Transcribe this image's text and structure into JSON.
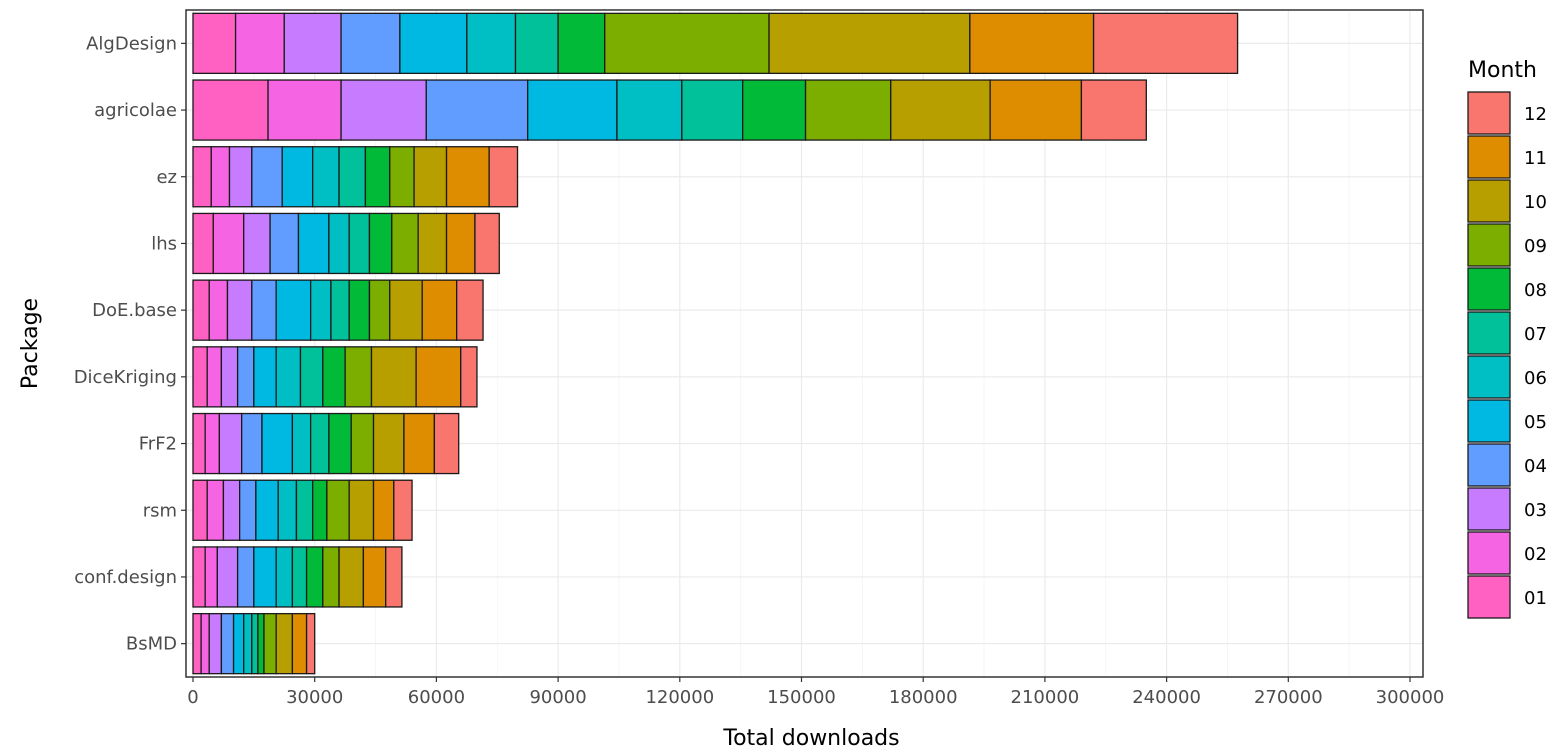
{
  "chart_data": {
    "type": "bar",
    "orientation": "horizontal",
    "stacked": true,
    "xlabel": "Total downloads",
    "ylabel": "Package",
    "xlim": [
      0,
      300000
    ],
    "x_ticks": [
      0,
      30000,
      60000,
      90000,
      120000,
      150000,
      180000,
      210000,
      240000,
      270000,
      300000
    ],
    "x_tick_labels": [
      "0",
      "30000",
      "60000",
      "90000",
      "120000",
      "150000",
      "180000",
      "210000",
      "240000",
      "270000",
      "300000"
    ],
    "grid": true,
    "legend": {
      "title": "Month",
      "position": "right",
      "entries": [
        "12",
        "11",
        "10",
        "09",
        "08",
        "07",
        "06",
        "05",
        "04",
        "03",
        "02",
        "01"
      ]
    },
    "month_colors": {
      "01": "#FF61C3",
      "02": "#F564E3",
      "03": "#C77CFF",
      "04": "#619CFF",
      "05": "#00B9E3",
      "06": "#00BFC4",
      "07": "#00C19A",
      "08": "#00BA38",
      "09": "#7CAE00",
      "10": "#B79F00",
      "11": "#DE8C00",
      "12": "#F8766D"
    },
    "month_order": [
      "01",
      "02",
      "03",
      "04",
      "05",
      "06",
      "07",
      "08",
      "09",
      "10",
      "11",
      "12"
    ],
    "categories": [
      "AlgDesign",
      "agricolae",
      "ez",
      "lhs",
      "DoE.base",
      "DiceKriging",
      "FrF2",
      "rsm",
      "conf.design",
      "BsMD"
    ],
    "series": [
      {
        "name": "01",
        "values": [
          10500,
          18500,
          4500,
          5000,
          4000,
          3500,
          3000,
          3500,
          3000,
          2000
        ]
      },
      {
        "name": "02",
        "values": [
          12000,
          18000,
          4500,
          7500,
          4500,
          3500,
          3500,
          4000,
          3000,
          2000
        ]
      },
      {
        "name": "03",
        "values": [
          14000,
          21000,
          5500,
          6500,
          6000,
          4000,
          5500,
          4000,
          5000,
          3000
        ]
      },
      {
        "name": "04",
        "values": [
          14500,
          25000,
          7500,
          7000,
          6000,
          4000,
          5000,
          4000,
          4000,
          3000
        ]
      },
      {
        "name": "05",
        "values": [
          16500,
          22000,
          7500,
          7500,
          8500,
          5500,
          7500,
          5500,
          5500,
          2500
        ]
      },
      {
        "name": "06",
        "values": [
          12000,
          16000,
          6500,
          5000,
          5000,
          6000,
          4500,
          4500,
          4000,
          2000
        ]
      },
      {
        "name": "07",
        "values": [
          10500,
          15000,
          6500,
          5000,
          4500,
          5500,
          4500,
          4000,
          3500,
          1500
        ]
      },
      {
        "name": "08",
        "values": [
          11500,
          15500,
          6000,
          5500,
          5000,
          5500,
          5500,
          3500,
          4000,
          1500
        ]
      },
      {
        "name": "09",
        "values": [
          40500,
          21000,
          6000,
          6500,
          5000,
          6500,
          5500,
          5500,
          4000,
          3000
        ]
      },
      {
        "name": "10",
        "values": [
          49500,
          24500,
          8000,
          7000,
          8000,
          11000,
          7500,
          6000,
          6000,
          4000
        ]
      },
      {
        "name": "11",
        "values": [
          30500,
          22500,
          10500,
          7000,
          8500,
          11000,
          7500,
          5000,
          5500,
          3500
        ]
      },
      {
        "name": "12",
        "values": [
          35500,
          16000,
          7000,
          6000,
          6500,
          4000,
          6000,
          4500,
          4000,
          2000
        ]
      }
    ]
  }
}
